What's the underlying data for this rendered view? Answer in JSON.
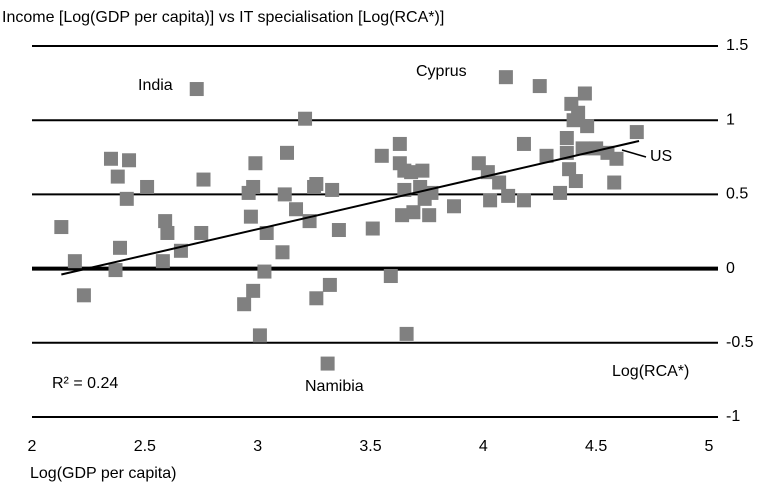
{
  "chart_data": {
    "type": "scatter",
    "subtitle": "Income [Log(GDP per capita)] vs IT specialisation [Log(RCA*)]",
    "x_label": "Log(GDP per capita)",
    "color": "#808080",
    "x": [
      2.13,
      2.19,
      2.23,
      2.35,
      2.38,
      2.37,
      2.39,
      2.43,
      2.42,
      2.51,
      2.58,
      2.59,
      2.6,
      2.66,
      2.73,
      2.75,
      2.76,
      2.94,
      2.96,
      2.98,
      2.97,
      2.98,
      2.99,
      3.01,
      3.03,
      3.04,
      3.11,
      3.12,
      3.13,
      3.17,
      3.21,
      3.23,
      3.25,
      3.26,
      3.26,
      3.32,
      3.31,
      3.33,
      3.36,
      3.51,
      3.55,
      3.59,
      3.63,
      3.63,
      3.64,
      3.65,
      3.66,
      3.65,
      3.68,
      3.69,
      3.72,
      3.73,
      3.74,
      3.76,
      3.77,
      3.87,
      3.98,
      4.02,
      4.03,
      4.07,
      4.1,
      4.11,
      4.18,
      4.18,
      4.25,
      4.28,
      4.34,
      4.37,
      4.37,
      4.38,
      4.39,
      4.4,
      4.41,
      4.42,
      4.44,
      4.45,
      4.46,
      4.5,
      4.55,
      4.58,
      4.59,
      4.68
    ],
    "values": [
      0.28,
      0.05,
      -0.18,
      0.74,
      0.62,
      -0.01,
      0.14,
      0.73,
      0.47,
      0.55,
      0.05,
      0.32,
      0.24,
      0.12,
      1.21,
      0.24,
      0.6,
      -0.24,
      0.51,
      -0.15,
      0.35,
      0.55,
      0.71,
      -0.45,
      -0.02,
      0.24,
      0.11,
      0.5,
      0.78,
      0.4,
      1.01,
      0.32,
      0.55,
      -0.2,
      0.57,
      -0.11,
      -0.64,
      0.53,
      0.26,
      0.27,
      0.76,
      -0.05,
      0.84,
      0.71,
      0.36,
      0.53,
      -0.44,
      0.66,
      0.65,
      0.38,
      0.55,
      0.66,
      0.47,
      0.36,
      0.51,
      0.42,
      0.71,
      0.65,
      0.46,
      0.58,
      1.29,
      0.49,
      0.46,
      0.84,
      1.23,
      0.76,
      0.51,
      0.88,
      0.78,
      0.67,
      1.11,
      1.0,
      0.59,
      1.05,
      0.81,
      1.18,
      0.96,
      0.81,
      0.78,
      0.58,
      0.74,
      0.92
    ],
    "trendline": {
      "x": [
        2.13,
        4.69
      ],
      "y": [
        -0.04,
        0.86
      ]
    },
    "annotations": [
      "India",
      "Cyprus",
      "US",
      "Namibia",
      "R² = 0.24",
      "Log(RCA*)"
    ],
    "xlim": [
      2,
      5
    ],
    "xticks": [
      2,
      2.5,
      3,
      3.5,
      4,
      4.5,
      5
    ],
    "ylim": [
      -1,
      1.5
    ],
    "yticks": [
      -1,
      -0.5,
      0,
      0.5,
      1,
      1.5
    ],
    "grid": true
  }
}
